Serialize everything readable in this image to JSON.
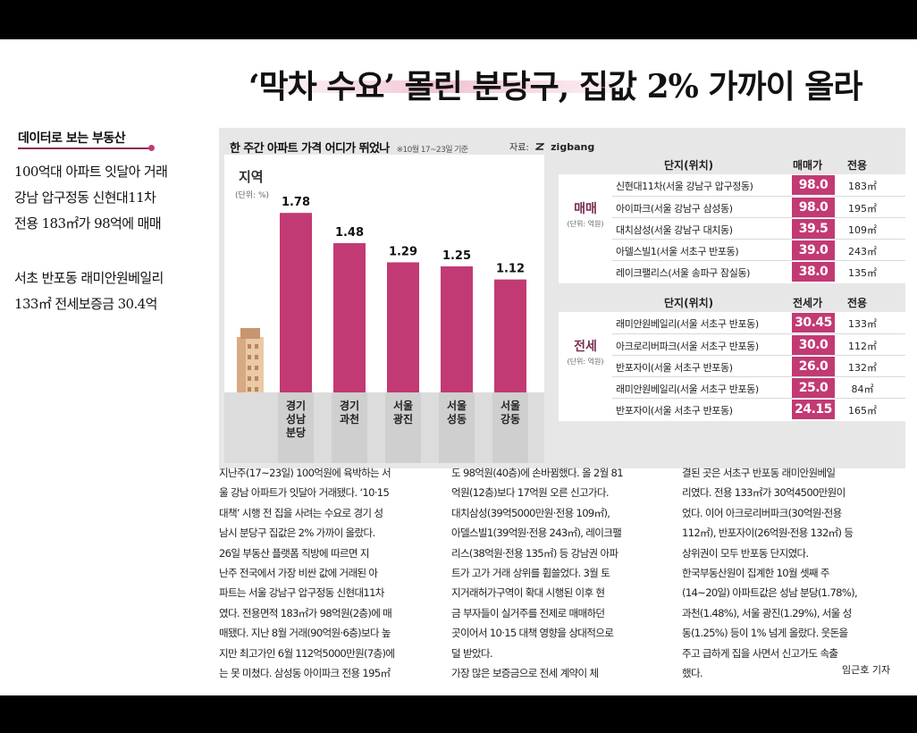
{
  "headline": "‘막차 수요’ 몰린 분당구, 집값 2% 가까이 올라",
  "sidebar": {
    "label": "데이터로 보는 부동산",
    "summary1": [
      "100억대 아파트 잇달아 거래",
      "강남 압구정동 신현대11차",
      "전용 183㎡가 98억에 매매"
    ],
    "summary2": [
      "서초 반포동 래미안원베일리",
      "133㎡ 전세보증금 30.4억"
    ]
  },
  "infographic": {
    "title": "한 주간 아파트 가격 어디가 뛰었나",
    "date_note": "※10월 17~23일 기준",
    "source_label": "자료:",
    "source_name": "zigbang"
  },
  "chart_data": {
    "type": "bar",
    "ylabel": "지역",
    "unit": "(단위: %)",
    "categories": [
      [
        "경기",
        "성남",
        "분당"
      ],
      [
        "경기",
        "과천"
      ],
      [
        "서울",
        "광진"
      ],
      [
        "서울",
        "성동"
      ],
      [
        "서울",
        "강동"
      ]
    ],
    "values": [
      1.78,
      1.48,
      1.29,
      1.25,
      1.12
    ],
    "value_labels": [
      "1.78",
      "1.48",
      "1.29",
      "1.25",
      "1.12"
    ],
    "ylim": [
      0,
      1.95
    ],
    "color": "#c23a73"
  },
  "sale_table": {
    "category": "매매",
    "unit": "(단위: 억원)",
    "headers": [
      "단지(위치)",
      "매매가",
      "전용"
    ],
    "rows": [
      {
        "name": "신현대11차(서울 강남구 압구정동)",
        "price": "98.0",
        "area": "183㎡"
      },
      {
        "name": "아이파크(서울 강남구 삼성동)",
        "price": "98.0",
        "area": "195㎡"
      },
      {
        "name": "대치삼성(서울 강남구 대치동)",
        "price": "39.5",
        "area": "109㎡"
      },
      {
        "name": "아델스빌1(서울 서초구 반포동)",
        "price": "39.0",
        "area": "243㎡"
      },
      {
        "name": "레이크팰리스(서울 송파구 잠실동)",
        "price": "38.0",
        "area": "135㎡"
      }
    ]
  },
  "jeonse_table": {
    "category": "전세",
    "unit": "(단위: 억원)",
    "headers": [
      "단지(위치)",
      "전세가",
      "전용"
    ],
    "rows": [
      {
        "name": "래미안원베일리(서울 서초구 반포동)",
        "price": "30.45",
        "area": "133㎡"
      },
      {
        "name": "아크로리버파크(서울 서초구 반포동)",
        "price": "30.0",
        "area": "112㎡"
      },
      {
        "name": "반포자이(서울 서초구 반포동)",
        "price": "26.0",
        "area": "132㎡"
      },
      {
        "name": "래미안원베일리(서울 서초구 반포동)",
        "price": "25.0",
        "area": "84㎡"
      },
      {
        "name": "반포자이(서울 서초구 반포동)",
        "price": "24.15",
        "area": "165㎡"
      }
    ]
  },
  "article": {
    "col1": [
      "지난주(17~23일) 100억원에 육박하는 서",
      "울 강남 아파트가 잇달아 거래됐다. ‘10·15",
      "대책’ 시행 전 집을 사려는 수요로 경기 성",
      "남시 분당구 집값은 2% 가까이 올랐다.",
      "  26일 부동산 플랫폼 직방에 따르면 지",
      "난주 전국에서 가장 비싼 값에 거래된 아",
      "파트는 서울 강남구 압구정동 신현대11차",
      "였다. 전용면적 183㎡가 98억원(2층)에 매",
      "매됐다. 지난 8월 거래(90억원·6층)보다 높",
      "지만 최고가인 6월 112억5000만원(7층)에",
      "는 못 미쳤다. 삼성동 아이파크 전용 195㎡"
    ],
    "col2": [
      "도 98억원(40층)에 손바뀜했다. 올 2월 81",
      "억원(12층)보다 17억원 오른 신고가다.",
      "  대치삼성(39억5000만원·전용 109㎡),",
      "아델스빌1(39억원·전용 243㎡), 레이크팰",
      "리스(38억원·전용 135㎡) 등 강남권 아파",
      "트가 고가 거래 상위를 휩쓸었다. 3월 토",
      "지거래허가구역이 확대 시행된 이후 현",
      "금 부자들이 실거주를 전제로 매매하던",
      "곳이어서 10·15 대책 영향을 상대적으로",
      "덜 받았다.",
      "  가장 많은 보증금으로 전세 계약이 체"
    ],
    "col3": [
      "결된 곳은 서초구 반포동 래미안원베일",
      "리였다. 전용 133㎡가 30억4500만원이",
      "었다. 이어 아크로리버파크(30억원·전용",
      "112㎡), 반포자이(26억원·전용 132㎡) 등",
      "상위권이 모두 반포동 단지였다.",
      "  한국부동산원이 집계한 10월 셋째 주",
      "(14~20일) 아파트값은 성남 분당(1.78%),",
      "과천(1.48%), 서울 광진(1.29%), 서울 성",
      "동(1.25%) 등이 1% 넘게 올랐다. 웃돈을",
      "주고 급하게 집을 사면서 신고가도 속출",
      "했다."
    ],
    "byline": "임근호 기자"
  }
}
